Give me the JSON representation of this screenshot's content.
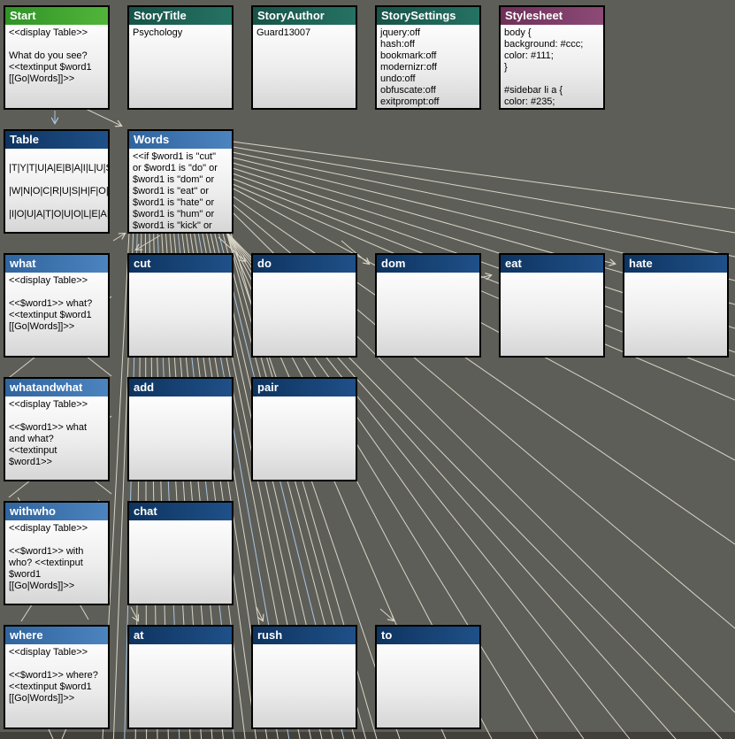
{
  "window": {
    "background": "#5e5e58",
    "bottom_strip": "#42403a"
  },
  "palette": {
    "line": "#d9d5c6",
    "line_blue": "#a9c6e2",
    "border": "#000000",
    "title_text": "#ffffff",
    "body_text": "#000000",
    "body_top": "#fdfdfd",
    "body_bottom": "#d6d6d6",
    "headers": {
      "green": [
        "#2f9326",
        "#52b53a"
      ],
      "teal": [
        "#175349",
        "#257263"
      ],
      "purple": [
        "#6d3058",
        "#8d4a77"
      ],
      "navy": [
        "#0e3460",
        "#1f5088"
      ],
      "blue": [
        "#30649e",
        "#4c84bf"
      ]
    }
  },
  "passages": [
    {
      "title": "Start",
      "style": "green",
      "col": 0,
      "row": 0,
      "body": "<<display Table>>\n\nWhat do you see?\n<<textinput $word1\n[[Go|Words]]>>"
    },
    {
      "title": "StoryTitle",
      "style": "teal",
      "col": 1,
      "row": 0,
      "body": "Psychology"
    },
    {
      "title": "StoryAuthor",
      "style": "teal",
      "col": 2,
      "row": 0,
      "body": "Guard13007"
    },
    {
      "title": "StorySettings",
      "style": "teal",
      "col": 3,
      "row": 0,
      "body": "jquery:off\nhash:off\nbookmark:off\nmodernizr:off\nundo:off\nobfuscate:off\nexitprompt:off"
    },
    {
      "title": "Stylesheet",
      "style": "purple",
      "col": 4,
      "row": 0,
      "body": "body {\nbackground: #ccc;\ncolor: #111;\n}\n\n#sidebar li a {\ncolor: #235;"
    },
    {
      "title": "Table",
      "style": "navy",
      "col": 0,
      "row": 1,
      "body": "\n|T|Y|T|U|A|E|B|A|I|L|U|S|T|\n\n|W|N|O|C|R|U|S|H|F|O|O|L\n\n|I|O|U|A|T|O|U|O|L|E|A|V|E"
    },
    {
      "title": "Words",
      "style": "blue",
      "col": 1,
      "row": 1,
      "body": "<<if $word1 is \"cut\"\nor $word1 is \"do\" or\n$word1 is \"dom\" or\n$word1 is \"eat\" or\n$word1 is \"hate\" or\n$word1 is \"hum\" or\n$word1 is \"kick\" or"
    },
    {
      "title": "what",
      "style": "blue",
      "col": 0,
      "row": 2,
      "body": "<<display Table>>\n\n<<$word1>> what?\n<<textinput $word1\n[[Go|Words]]>>"
    },
    {
      "title": "cut",
      "style": "navy",
      "col": 1,
      "row": 2,
      "body": ""
    },
    {
      "title": "do",
      "style": "navy",
      "col": 2,
      "row": 2,
      "body": ""
    },
    {
      "title": "dom",
      "style": "navy",
      "col": 3,
      "row": 2,
      "body": ""
    },
    {
      "title": "eat",
      "style": "navy",
      "col": 4,
      "row": 2,
      "body": ""
    },
    {
      "title": "hate",
      "style": "navy",
      "col": 5,
      "row": 2,
      "body": ""
    },
    {
      "title": "whatandwhat",
      "style": "blue",
      "col": 0,
      "row": 3,
      "body": "<<display Table>>\n\n<<$word1>> what\nand what?\n<<textinput\n$word1>>"
    },
    {
      "title": "add",
      "style": "navy",
      "col": 1,
      "row": 3,
      "body": ""
    },
    {
      "title": "pair",
      "style": "navy",
      "col": 2,
      "row": 3,
      "body": ""
    },
    {
      "title": "withwho",
      "style": "blue",
      "col": 0,
      "row": 4,
      "body": "<<display Table>>\n\n<<$word1>> with\nwho? <<textinput\n$word1\n[[Go|Words]]>>"
    },
    {
      "title": "chat",
      "style": "navy",
      "col": 1,
      "row": 4,
      "body": ""
    },
    {
      "title": "where",
      "style": "blue",
      "col": 0,
      "row": 5,
      "body": "<<display Table>>\n\n<<$word1>> where?\n<<textinput $word1\n[[Go|Words]]>>"
    },
    {
      "title": "at",
      "style": "navy",
      "col": 1,
      "row": 5,
      "body": ""
    },
    {
      "title": "rush",
      "style": "navy",
      "col": 2,
      "row": 5,
      "body": ""
    },
    {
      "title": "to",
      "style": "navy",
      "col": 3,
      "row": 5,
      "body": ""
    }
  ]
}
